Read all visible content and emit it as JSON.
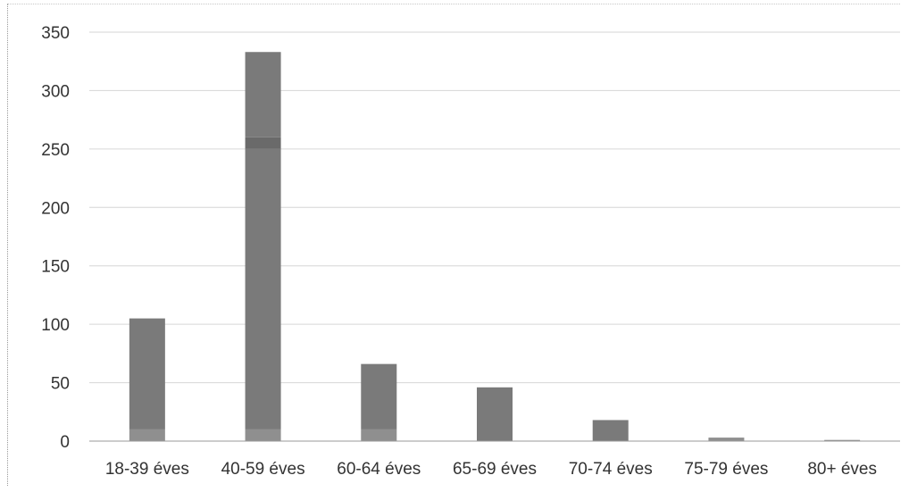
{
  "chart_data": {
    "type": "bar",
    "stacked": true,
    "title": "",
    "xlabel": "",
    "ylabel": "",
    "ylim": [
      0,
      350
    ],
    "yticks": [
      0,
      50,
      100,
      150,
      200,
      250,
      300,
      350
    ],
    "grid": true,
    "legend": "none",
    "categories": [
      "18-39 éves",
      "40-59 éves",
      "60-64 éves",
      "65-69 éves",
      "70-74 éves",
      "75-79 éves",
      "80+ éves"
    ],
    "series": [
      {
        "values": [
          10,
          10,
          10,
          0,
          0,
          3,
          1
        ],
        "color": "#8f8f8f"
      },
      {
        "values": [
          95,
          240,
          56,
          46,
          18,
          0,
          0
        ],
        "color": "#7a7a7a"
      },
      {
        "values": [
          0,
          10,
          0,
          0,
          0,
          0,
          0
        ],
        "color": "#6a6a6a"
      },
      {
        "values": [
          0,
          73,
          0,
          0,
          0,
          0,
          0
        ],
        "color": "#7a7a7a"
      }
    ]
  }
}
